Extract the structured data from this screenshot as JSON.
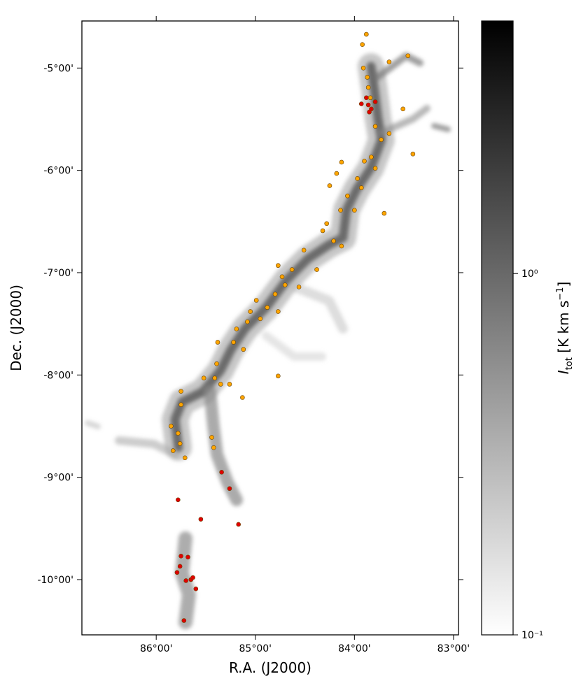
{
  "chart_data": {
    "type": "scatter",
    "x_label": "R.A. (J2000)",
    "y_label": "Dec. (J2000)",
    "xlim": [
      86.75,
      82.95
    ],
    "ylim": [
      -10.54,
      -4.54
    ],
    "xticks": [
      {
        "value": 86,
        "label": "86°00'"
      },
      {
        "value": 85,
        "label": "85°00'"
      },
      {
        "value": 84,
        "label": "84°00'"
      },
      {
        "value": 83,
        "label": "83°00'"
      }
    ],
    "yticks": [
      {
        "value": -5,
        "label": "-5°00'"
      },
      {
        "value": -6,
        "label": "-6°00'"
      },
      {
        "value": -7,
        "label": "-7°00'"
      },
      {
        "value": -8,
        "label": "-8°00'"
      },
      {
        "value": -9,
        "label": "-9°00'"
      },
      {
        "value": -10,
        "label": "-10°00'"
      }
    ],
    "series": [
      {
        "color": "#ffa500",
        "x": [
          83.88,
          83.92,
          83.91,
          83.87,
          83.86,
          83.84,
          83.46,
          83.65,
          83.79,
          83.65,
          83.51,
          83.73,
          83.83,
          83.79,
          83.9,
          83.41,
          83.97,
          83.93,
          84.13,
          84.18,
          84.25,
          84.07,
          84.14,
          84.0,
          83.7,
          84.28,
          84.32,
          84.21,
          84.13,
          84.51,
          84.38,
          84.77,
          84.73,
          84.7,
          84.63,
          84.8,
          84.56,
          84.99,
          85.05,
          84.95,
          85.08,
          84.88,
          84.77,
          85.19,
          85.22,
          85.12,
          85.38,
          85.39,
          85.41,
          85.52,
          85.35,
          85.26,
          85.13,
          84.77,
          85.75,
          85.75,
          85.85,
          85.78,
          85.76,
          85.83,
          85.71,
          85.44,
          85.42
        ],
        "values": [
          -4.67,
          -4.77,
          -5.0,
          -5.09,
          -5.19,
          -5.29,
          -4.88,
          -4.94,
          -5.57,
          -5.64,
          -5.4,
          -5.7,
          -5.87,
          -5.98,
          -5.91,
          -5.84,
          -6.08,
          -6.17,
          -5.92,
          -6.03,
          -6.15,
          -6.25,
          -6.39,
          -6.39,
          -6.42,
          -6.52,
          -6.59,
          -6.69,
          -6.74,
          -6.78,
          -6.97,
          -6.93,
          -7.04,
          -7.12,
          -6.97,
          -7.21,
          -7.14,
          -7.27,
          -7.38,
          -7.45,
          -7.48,
          -7.34,
          -7.38,
          -7.55,
          -7.68,
          -7.75,
          -7.68,
          -7.89,
          -8.03,
          -8.03,
          -8.09,
          -8.09,
          -8.22,
          -8.01,
          -8.16,
          -8.29,
          -8.5,
          -8.57,
          -8.67,
          -8.74,
          -8.81,
          -8.61,
          -8.71
        ]
      },
      {
        "color": "#e00000",
        "x": [
          83.86,
          83.83,
          83.88,
          83.79,
          83.93,
          83.85,
          85.34,
          85.26,
          85.78,
          85.55,
          85.17,
          85.75,
          85.76,
          85.79,
          85.68,
          85.7,
          85.65,
          85.63,
          85.6,
          85.72
        ],
        "values": [
          -5.36,
          -5.4,
          -5.29,
          -5.33,
          -5.35,
          -5.43,
          -8.95,
          -9.11,
          -9.22,
          -9.41,
          -9.46,
          -9.77,
          -9.87,
          -9.93,
          -9.78,
          -10.01,
          -10.0,
          -9.98,
          -10.09,
          -10.4
        ]
      }
    ],
    "colorbar": {
      "scale": "log",
      "lim": [
        0.1,
        5
      ],
      "colors": [
        "#ffffff",
        "#000000"
      ],
      "ticks": [
        {
          "value": 0.1,
          "label": "10⁻¹"
        },
        {
          "value": 1,
          "label": "10⁰"
        }
      ],
      "label_parts": [
        "I",
        "tot",
        " [K km s",
        "−1",
        "]"
      ]
    }
  }
}
